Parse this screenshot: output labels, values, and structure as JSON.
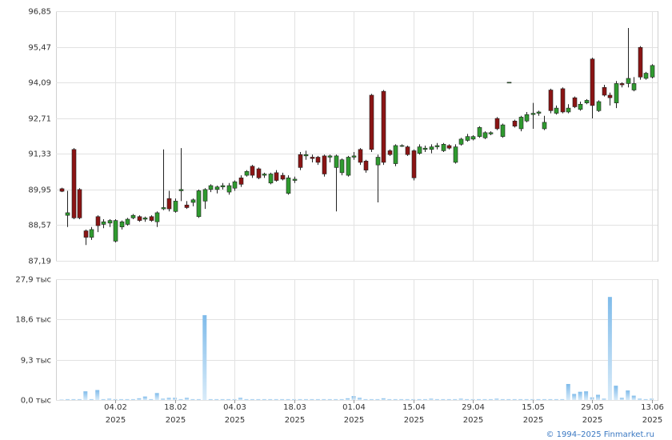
{
  "chart_data": [
    {
      "type": "candlestick",
      "x": [
        "2025-01-22",
        "2025-01-23",
        "2025-01-24",
        "2025-01-27",
        "2025-01-28",
        "2025-01-29",
        "2025-01-30",
        "2025-01-31",
        "2025-02-03",
        "2025-02-04",
        "2025-02-05",
        "2025-02-06",
        "2025-02-07",
        "2025-02-10",
        "2025-02-11",
        "2025-02-12",
        "2025-02-13",
        "2025-02-14",
        "2025-02-17",
        "2025-02-18",
        "2025-02-19",
        "2025-02-20",
        "2025-02-21",
        "2025-02-24",
        "2025-02-25",
        "2025-02-26",
        "2025-02-27",
        "2025-02-28",
        "2025-03-03",
        "2025-03-04",
        "2025-03-05",
        "2025-03-06",
        "2025-03-07",
        "2025-03-10",
        "2025-03-11",
        "2025-03-12",
        "2025-03-13",
        "2025-03-14",
        "2025-03-17",
        "2025-03-18",
        "2025-03-19",
        "2025-03-20",
        "2025-03-21",
        "2025-03-24",
        "2025-03-25",
        "2025-03-26",
        "2025-03-27",
        "2025-03-28",
        "2025-03-31",
        "2025-04-01",
        "2025-04-02",
        "2025-04-03",
        "2025-04-04",
        "2025-04-07",
        "2025-04-08",
        "2025-04-09",
        "2025-04-10",
        "2025-04-11",
        "2025-04-14",
        "2025-04-15",
        "2025-04-16",
        "2025-04-17",
        "2025-04-18",
        "2025-04-21",
        "2025-04-22",
        "2025-04-23",
        "2025-04-24",
        "2025-04-25",
        "2025-04-28",
        "2025-04-29",
        "2025-04-30",
        "2025-05-02",
        "2025-05-05",
        "2025-05-06",
        "2025-05-07",
        "2025-05-08",
        "2025-05-12",
        "2025-05-13",
        "2025-05-14",
        "2025-05-15",
        "2025-05-16",
        "2025-05-19",
        "2025-05-20",
        "2025-05-21",
        "2025-05-22",
        "2025-05-23",
        "2025-05-26",
        "2025-05-27",
        "2025-05-28",
        "2025-05-29",
        "2025-05-30",
        "2025-06-02",
        "2025-06-03",
        "2025-06-04",
        "2025-06-05",
        "2025-06-06",
        "2025-06-09",
        "2025-06-10",
        "2025-06-11",
        "2025-06-13"
      ],
      "open": [
        89.98,
        88.95,
        91.5,
        89.95,
        88.35,
        88.1,
        88.9,
        88.6,
        88.65,
        87.95,
        88.5,
        88.6,
        88.85,
        88.9,
        88.8,
        88.9,
        88.7,
        89.2,
        89.6,
        89.1,
        89.9,
        89.35,
        89.45,
        88.9,
        89.5,
        89.95,
        89.95,
        90.05,
        89.85,
        90.0,
        90.4,
        90.5,
        90.85,
        90.75,
        90.5,
        90.2,
        90.6,
        90.5,
        89.8,
        90.3,
        91.3,
        91.25,
        91.2,
        91.2,
        91.25,
        91.2,
        90.8,
        90.6,
        90.5,
        91.2,
        91.5,
        91.05,
        93.6,
        90.9,
        93.75,
        91.45,
        90.95,
        91.65,
        91.6,
        91.45,
        91.35,
        91.5,
        91.5,
        91.6,
        91.45,
        91.65,
        91.0,
        91.7,
        91.85,
        91.9,
        92.0,
        91.95,
        92.1,
        92.7,
        92.0,
        94.1,
        92.6,
        92.3,
        92.6,
        92.85,
        92.9,
        92.3,
        93.8,
        92.9,
        93.85,
        92.95,
        93.5,
        93.05,
        93.3,
        95.0,
        93.0,
        93.9,
        93.6,
        93.3,
        94.05,
        94.05,
        93.8,
        95.45,
        94.25,
        94.3
      ],
      "high": [
        90.02,
        89.9,
        91.55,
        90.0,
        88.4,
        88.5,
        88.95,
        88.8,
        88.8,
        88.8,
        88.75,
        88.85,
        89.0,
        88.95,
        88.9,
        88.95,
        89.1,
        91.5,
        89.9,
        89.6,
        91.55,
        89.5,
        89.6,
        89.95,
        90.0,
        90.15,
        90.1,
        90.2,
        90.2,
        90.3,
        90.5,
        90.7,
        90.9,
        90.8,
        90.6,
        90.6,
        90.7,
        90.6,
        90.5,
        90.45,
        91.4,
        91.45,
        91.3,
        91.25,
        91.3,
        91.3,
        91.3,
        91.15,
        91.25,
        91.4,
        91.55,
        91.1,
        93.65,
        91.3,
        93.8,
        91.5,
        91.7,
        91.7,
        91.65,
        91.5,
        91.7,
        91.65,
        91.7,
        91.75,
        91.75,
        91.7,
        91.7,
        91.95,
        92.1,
        92.05,
        92.4,
        92.2,
        92.2,
        92.75,
        92.5,
        94.1,
        92.65,
        92.8,
        92.95,
        93.3,
        93.0,
        92.8,
        93.85,
        93.2,
        93.9,
        93.25,
        93.55,
        93.35,
        93.45,
        95.05,
        93.4,
        94.0,
        93.7,
        94.15,
        94.1,
        96.2,
        94.3,
        95.5,
        94.5,
        94.8
      ],
      "low": [
        89.85,
        88.5,
        88.8,
        88.8,
        87.8,
        88.0,
        88.3,
        88.45,
        88.5,
        87.9,
        88.4,
        88.55,
        88.8,
        88.7,
        88.7,
        88.7,
        88.5,
        89.15,
        89.1,
        89.05,
        89.5,
        89.2,
        89.3,
        88.85,
        89.2,
        89.85,
        89.8,
        89.95,
        89.75,
        89.9,
        90.05,
        90.45,
        90.4,
        90.35,
        90.4,
        90.15,
        90.25,
        90.3,
        89.75,
        90.2,
        90.7,
        91.1,
        91.0,
        90.9,
        90.45,
        91.0,
        89.1,
        90.5,
        90.45,
        91.1,
        90.9,
        90.6,
        91.4,
        89.45,
        90.9,
        91.25,
        90.85,
        91.6,
        91.25,
        90.3,
        91.3,
        91.4,
        91.35,
        91.5,
        91.4,
        91.5,
        90.95,
        91.65,
        91.8,
        91.85,
        91.95,
        91.9,
        92.05,
        92.25,
        91.95,
        94.1,
        92.35,
        92.2,
        92.55,
        92.3,
        92.8,
        92.25,
        92.9,
        92.85,
        92.9,
        92.9,
        93.1,
        93.0,
        93.25,
        92.7,
        92.95,
        93.55,
        93.2,
        93.1,
        93.9,
        93.9,
        93.75,
        94.2,
        94.2,
        94.25
      ],
      "close": [
        89.88,
        89.05,
        88.85,
        88.85,
        88.1,
        88.4,
        88.55,
        88.7,
        88.75,
        88.75,
        88.7,
        88.8,
        88.95,
        88.75,
        88.85,
        88.75,
        89.05,
        89.25,
        89.2,
        89.5,
        89.95,
        89.25,
        89.55,
        89.9,
        89.95,
        90.1,
        90.05,
        90.1,
        90.1,
        90.25,
        90.15,
        90.65,
        90.5,
        90.4,
        90.55,
        90.55,
        90.3,
        90.35,
        90.4,
        90.35,
        90.8,
        91.3,
        91.15,
        91.0,
        90.55,
        91.25,
        91.25,
        91.1,
        91.2,
        91.25,
        91.0,
        90.7,
        91.5,
        91.2,
        91.0,
        91.3,
        91.65,
        91.65,
        91.3,
        90.4,
        91.6,
        91.55,
        91.6,
        91.65,
        91.7,
        91.55,
        91.6,
        91.9,
        92.0,
        92.0,
        92.35,
        92.15,
        92.15,
        92.3,
        92.45,
        94.1,
        92.4,
        92.75,
        92.85,
        92.9,
        92.95,
        92.55,
        93.0,
        93.1,
        92.95,
        93.1,
        93.15,
        93.25,
        93.4,
        93.2,
        93.35,
        93.6,
        93.5,
        94.05,
        94.0,
        94.25,
        94.05,
        94.3,
        94.45,
        94.75
      ],
      "up_color": "#2f9a2f",
      "down_color": "#8b1414",
      "ylim": [
        87.19,
        96.85
      ],
      "yticks": [
        {
          "value": 87.19,
          "label": "87,19"
        },
        {
          "value": 88.57,
          "label": "88,57"
        },
        {
          "value": 89.95,
          "label": "89,95"
        },
        {
          "value": 91.33,
          "label": "91,33"
        },
        {
          "value": 92.71,
          "label": "92,71"
        },
        {
          "value": 94.09,
          "label": "94,09"
        },
        {
          "value": 95.47,
          "label": "95,47"
        },
        {
          "value": 96.85,
          "label": "96,85"
        }
      ],
      "grid": true
    },
    {
      "type": "bar",
      "values": [
        0.1,
        0.2,
        0.2,
        0.2,
        2.0,
        0.2,
        2.3,
        0.2,
        0.3,
        0.2,
        0.2,
        0.2,
        0.2,
        0.4,
        0.8,
        0.2,
        1.6,
        0.3,
        0.5,
        0.5,
        0.2,
        0.5,
        0.2,
        0.2,
        19.6,
        0.2,
        0.2,
        0.2,
        0.2,
        0.2,
        0.5,
        0.2,
        0.2,
        0.2,
        0.2,
        0.2,
        0.2,
        0.2,
        0.2,
        0.2,
        0.2,
        0.2,
        0.2,
        0.2,
        0.2,
        0.2,
        0.2,
        0.2,
        0.4,
        0.9,
        0.5,
        0.2,
        0.2,
        0.2,
        0.4,
        0.2,
        0.2,
        0.2,
        0.2,
        0.2,
        0.2,
        0.2,
        0.3,
        0.2,
        0.2,
        0.2,
        0.2,
        0.3,
        0.2,
        0.2,
        0.2,
        0.2,
        0.2,
        0.3,
        0.2,
        0.2,
        0.2,
        0.2,
        0.2,
        0.2,
        0.2,
        0.2,
        0.2,
        0.2,
        0.2,
        3.7,
        1.4,
        1.9,
        2.0,
        0.6,
        1.2,
        0.3,
        23.8,
        3.3,
        0.5,
        2.2,
        1.0,
        0.3,
        0.2,
        0.3
      ],
      "color": "#7fbbea",
      "ylim": [
        0,
        27.9
      ],
      "yticks": [
        {
          "value": 0,
          "label": "0,0 тыс"
        },
        {
          "value": 9.3,
          "label": "9,3 тыс"
        },
        {
          "value": 18.6,
          "label": "18,6 тыс"
        },
        {
          "value": 27.9,
          "label": "27,9 тыс"
        }
      ],
      "xticks": [
        {
          "value": "2025-02-04",
          "label": "04.02\n2025"
        },
        {
          "value": "2025-02-18",
          "label": "18.02\n2025"
        },
        {
          "value": "2025-03-04",
          "label": "04.03\n2025"
        },
        {
          "value": "2025-03-18",
          "label": "18.03\n2025"
        },
        {
          "value": "2025-04-01",
          "label": "01.04\n2025"
        },
        {
          "value": "2025-04-15",
          "label": "15.04\n2025"
        },
        {
          "value": "2025-04-29",
          "label": "29.04\n2025"
        },
        {
          "value": "2025-05-15",
          "label": "15.05\n2025"
        },
        {
          "value": "2025-05-29",
          "label": "29.05\n2025"
        },
        {
          "value": "2025-06-13",
          "label": "13.06\n2025"
        }
      ],
      "grid": true
    }
  ],
  "footer": "© 1994–2025 Finmarket.ru"
}
